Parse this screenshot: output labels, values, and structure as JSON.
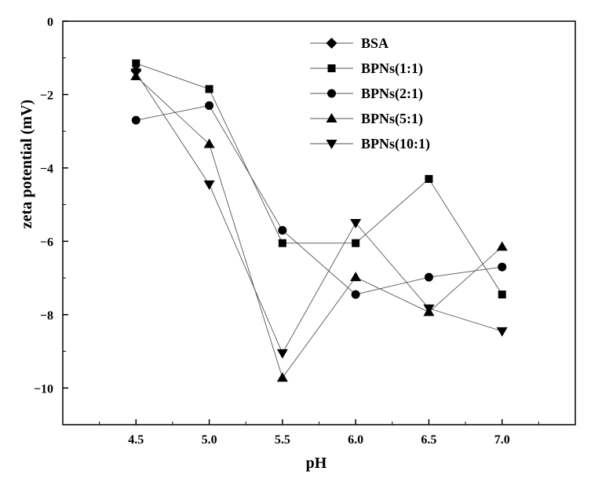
{
  "chart_data": {
    "type": "line",
    "title": "",
    "xlabel": "pH",
    "ylabel": "zeta potential (mV)",
    "x": [
      4.5,
      5.0,
      5.5,
      6.0,
      6.5,
      7.0
    ],
    "xticks": [
      "4.5",
      "5.0",
      "5.5",
      "6.0",
      "6.5",
      "7.0"
    ],
    "yticks": [
      "0",
      "−2",
      "−4",
      "−6",
      "−8",
      "−10"
    ],
    "ylim": [
      -11,
      0
    ],
    "grid": false,
    "legend_position": "top-right",
    "series": [
      {
        "name": "BSA",
        "marker": "diamond",
        "values": [
          -1.35,
          null,
          null,
          null,
          null,
          null
        ]
      },
      {
        "name": "BPNs(1:1)",
        "marker": "square",
        "values": [
          -1.15,
          -1.85,
          -6.05,
          -6.05,
          -4.3,
          -7.45
        ]
      },
      {
        "name": "BPNs(2:1)",
        "marker": "circle",
        "values": [
          -2.7,
          -2.3,
          -5.7,
          -7.45,
          -6.98,
          -6.7
        ]
      },
      {
        "name": "BPNs(5:1)",
        "marker": "triangle-up",
        "values": [
          -1.5,
          -3.35,
          -9.72,
          -6.98,
          -7.93,
          -6.15
        ]
      },
      {
        "name": "BPNs(10:1)",
        "marker": "triangle-down",
        "values": [
          -1.4,
          -4.45,
          -9.05,
          -5.5,
          -7.83,
          -8.45
        ]
      }
    ],
    "colors": {
      "marker": "#000000",
      "line": "#555555"
    }
  }
}
